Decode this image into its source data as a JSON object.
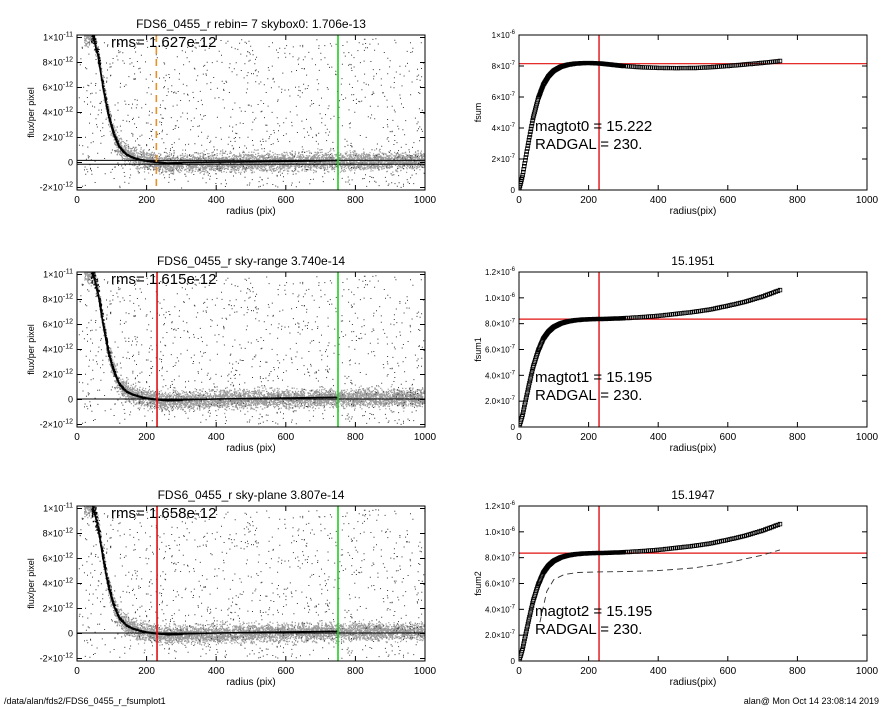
{
  "footer": {
    "path": "/data/alan/fds2/FDS6_0455_r_fsumplot1",
    "stamp": "alan@  Mon Oct 14 23:08:14 2019"
  },
  "chart_data": [
    {
      "id": "flux-rebin",
      "type": "scatter",
      "title": "FDS6_0455_r rebin= 7    skybox0:  1.706e-13",
      "xlabel": "radius (pix)",
      "ylabel": "flux/per pixel",
      "xlim": [
        0,
        1000
      ],
      "ylim": [
        -2.2e-12,
        1.02e-11
      ],
      "xticks": [
        "0",
        "200",
        "400",
        "600",
        "800",
        "1000"
      ],
      "yticks": [
        {
          "v": -2e-12,
          "m": "-2×10",
          "e": "-12"
        },
        {
          "v": 0,
          "m": "0",
          "e": ""
        },
        {
          "v": 2e-12,
          "m": "2×10",
          "e": "-12"
        },
        {
          "v": 4e-12,
          "m": "4×10",
          "e": "-12"
        },
        {
          "v": 6e-12,
          "m": "6×10",
          "e": "-12"
        },
        {
          "v": 8e-12,
          "m": "8×10",
          "e": "-12"
        },
        {
          "v": 1e-11,
          "m": "1×10",
          "e": "-11"
        }
      ],
      "annotation": "rms= 1.627e-12",
      "vlines": [
        {
          "x": 228,
          "color": "#e8902a",
          "style": "dashed"
        },
        {
          "x": 750,
          "color": "#22cc22",
          "style": "solid"
        }
      ],
      "hlines": [
        1.706e-13
      ],
      "profile": [
        [
          45,
          1.02e-11
        ],
        [
          60,
          8.6e-12
        ],
        [
          75,
          6e-12
        ],
        [
          90,
          3.8e-12
        ],
        [
          105,
          2.3e-12
        ],
        [
          120,
          1.3e-12
        ],
        [
          140,
          7e-13
        ],
        [
          160,
          4.2e-13
        ],
        [
          180,
          2.5e-13
        ],
        [
          200,
          1.5e-13
        ],
        [
          228,
          5e-14
        ],
        [
          260,
          -4e-14
        ],
        [
          300,
          0
        ],
        [
          400,
          3e-14
        ],
        [
          500,
          6e-14
        ],
        [
          600,
          1e-13
        ],
        [
          700,
          1.4e-13
        ],
        [
          750,
          1.6e-13
        ]
      ]
    },
    {
      "id": "fsum0",
      "type": "line",
      "title": "",
      "xlabel": "radius(pix)",
      "ylabel": "fsum",
      "xlim": [
        0,
        1000
      ],
      "ylim": [
        0,
        1e-06
      ],
      "xticks": [
        "0",
        "200",
        "400",
        "600",
        "800",
        "1000"
      ],
      "yticks": [
        {
          "v": 0,
          "m": "0",
          "e": ""
        },
        {
          "v": 2e-07,
          "m": "2×10",
          "e": "-7"
        },
        {
          "v": 4e-07,
          "m": "4×10",
          "e": "-7"
        },
        {
          "v": 6e-07,
          "m": "6×10",
          "e": "-7"
        },
        {
          "v": 8e-07,
          "m": "8×10",
          "e": "-7"
        },
        {
          "v": 1e-06,
          "m": "1×10",
          "e": "-6"
        }
      ],
      "annotations": [
        "magtot0 =  15.222",
        "RADGAL =   230."
      ],
      "vline": 230,
      "hline": 8.15e-07,
      "curve": [
        [
          0,
          0
        ],
        [
          10,
          9e-08
        ],
        [
          25,
          2.8e-07
        ],
        [
          40,
          4.6e-07
        ],
        [
          55,
          5.9e-07
        ],
        [
          70,
          6.8e-07
        ],
        [
          85,
          7.35e-07
        ],
        [
          100,
          7.7e-07
        ],
        [
          120,
          7.95e-07
        ],
        [
          140,
          8.08e-07
        ],
        [
          160,
          8.15e-07
        ],
        [
          180,
          8.18e-07
        ],
        [
          200,
          8.19e-07
        ],
        [
          230,
          8.17e-07
        ],
        [
          260,
          8.1e-07
        ],
        [
          300,
          8e-07
        ],
        [
          350,
          7.92e-07
        ],
        [
          400,
          7.88e-07
        ],
        [
          450,
          7.86e-07
        ],
        [
          500,
          7.87e-07
        ],
        [
          550,
          7.92e-07
        ],
        [
          600,
          8e-07
        ],
        [
          650,
          8.1e-07
        ],
        [
          700,
          8.2e-07
        ],
        [
          750,
          8.32e-07
        ]
      ]
    },
    {
      "id": "flux-skyrange",
      "type": "scatter",
      "title": "FDS6_0455_r sky-range  3.740e-14",
      "xlabel": "radius (pix)",
      "ylabel": "flux/per pixel",
      "xlim": [
        0,
        1000
      ],
      "ylim": [
        -2.2e-12,
        1.02e-11
      ],
      "xticks": [
        "0",
        "200",
        "400",
        "600",
        "800",
        "1000"
      ],
      "yticks": [
        {
          "v": -2e-12,
          "m": "-2×10",
          "e": "-12"
        },
        {
          "v": 0,
          "m": "0",
          "e": ""
        },
        {
          "v": 2e-12,
          "m": "2×10",
          "e": "-12"
        },
        {
          "v": 4e-12,
          "m": "4×10",
          "e": "-12"
        },
        {
          "v": 6e-12,
          "m": "6×10",
          "e": "-12"
        },
        {
          "v": 8e-12,
          "m": "8×10",
          "e": "-12"
        },
        {
          "v": 1e-11,
          "m": "1×10",
          "e": "-11"
        }
      ],
      "annotation": "rms= 1.615e-12",
      "vlines": [
        {
          "x": 230,
          "color": "#e01010",
          "style": "solid"
        },
        {
          "x": 750,
          "color": "#22cc22",
          "style": "solid"
        }
      ],
      "hlines": [
        3.74e-14
      ],
      "profile": [
        [
          45,
          1.02e-11
        ],
        [
          60,
          8.6e-12
        ],
        [
          75,
          6e-12
        ],
        [
          90,
          3.8e-12
        ],
        [
          105,
          2.3e-12
        ],
        [
          120,
          1.3e-12
        ],
        [
          140,
          7e-13
        ],
        [
          160,
          4.2e-13
        ],
        [
          180,
          2.5e-13
        ],
        [
          200,
          1.2e-13
        ],
        [
          230,
          2e-14
        ],
        [
          260,
          -5e-14
        ],
        [
          300,
          -3e-14
        ],
        [
          400,
          4e-14
        ],
        [
          500,
          8e-14
        ],
        [
          600,
          1.2e-13
        ],
        [
          700,
          1.6e-13
        ],
        [
          750,
          1.8e-13
        ]
      ]
    },
    {
      "id": "fsum1",
      "type": "line",
      "title": "15.1951",
      "xlabel": "radius(pix)",
      "ylabel": "fsum1",
      "xlim": [
        0,
        1000
      ],
      "ylim": [
        0,
        1.2e-06
      ],
      "xticks": [
        "0",
        "200",
        "400",
        "600",
        "800",
        "1000"
      ],
      "yticks": [
        {
          "v": 0,
          "m": "0",
          "e": ""
        },
        {
          "v": 2e-07,
          "m": "2.0×10",
          "e": "-7"
        },
        {
          "v": 4e-07,
          "m": "4.0×10",
          "e": "-7"
        },
        {
          "v": 6e-07,
          "m": "6.0×10",
          "e": "-7"
        },
        {
          "v": 8e-07,
          "m": "8.0×10",
          "e": "-7"
        },
        {
          "v": 1e-06,
          "m": "1.0×10",
          "e": "-6"
        },
        {
          "v": 1.2e-06,
          "m": "1.2×10",
          "e": "-6"
        }
      ],
      "annotations": [
        "magtot1 =  15.195",
        "RADGAL =    230."
      ],
      "vline": 230,
      "hline": 8.35e-07,
      "curve": [
        [
          0,
          0
        ],
        [
          10,
          9e-08
        ],
        [
          25,
          2.8e-07
        ],
        [
          40,
          4.6e-07
        ],
        [
          55,
          5.9e-07
        ],
        [
          70,
          6.85e-07
        ],
        [
          85,
          7.4e-07
        ],
        [
          100,
          7.75e-07
        ],
        [
          120,
          8.02e-07
        ],
        [
          140,
          8.17e-07
        ],
        [
          160,
          8.26e-07
        ],
        [
          180,
          8.31e-07
        ],
        [
          200,
          8.34e-07
        ],
        [
          230,
          8.36e-07
        ],
        [
          260,
          8.38e-07
        ],
        [
          300,
          8.42e-07
        ],
        [
          350,
          8.5e-07
        ],
        [
          400,
          8.6e-07
        ],
        [
          450,
          8.75e-07
        ],
        [
          500,
          8.9e-07
        ],
        [
          550,
          9.1e-07
        ],
        [
          600,
          9.38e-07
        ],
        [
          650,
          9.7e-07
        ],
        [
          700,
          1.01e-06
        ],
        [
          750,
          1.06e-06
        ]
      ]
    },
    {
      "id": "flux-skyplane",
      "type": "scatter",
      "title": "FDS6_0455_r sky-plane  3.807e-14",
      "xlabel": "radius (pix)",
      "ylabel": "flux/per pixel",
      "xlim": [
        0,
        1000
      ],
      "ylim": [
        -2.2e-12,
        1.02e-11
      ],
      "xticks": [
        "0",
        "200",
        "400",
        "600",
        "800",
        "1000"
      ],
      "yticks": [
        {
          "v": -2e-12,
          "m": "-2×10",
          "e": "-12"
        },
        {
          "v": 0,
          "m": "0",
          "e": ""
        },
        {
          "v": 2e-12,
          "m": "2×10",
          "e": "-12"
        },
        {
          "v": 4e-12,
          "m": "4×10",
          "e": "-12"
        },
        {
          "v": 6e-12,
          "m": "6×10",
          "e": "-12"
        },
        {
          "v": 8e-12,
          "m": "8×10",
          "e": "-12"
        },
        {
          "v": 1e-11,
          "m": "1×10",
          "e": "-11"
        }
      ],
      "annotation": "rms= 1.658e-12",
      "vlines": [
        {
          "x": 230,
          "color": "#e01010",
          "style": "solid"
        },
        {
          "x": 750,
          "color": "#22cc22",
          "style": "solid"
        }
      ],
      "hlines": [
        3.807e-14
      ],
      "profile": [
        [
          45,
          1.02e-11
        ],
        [
          60,
          8.6e-12
        ],
        [
          75,
          6e-12
        ],
        [
          90,
          3.8e-12
        ],
        [
          105,
          2.3e-12
        ],
        [
          120,
          1.3e-12
        ],
        [
          140,
          7e-13
        ],
        [
          160,
          4.2e-13
        ],
        [
          180,
          2.5e-13
        ],
        [
          200,
          1.2e-13
        ],
        [
          230,
          2e-14
        ],
        [
          260,
          -5e-14
        ],
        [
          300,
          -3e-14
        ],
        [
          400,
          4e-14
        ],
        [
          500,
          8e-14
        ],
        [
          600,
          1.2e-13
        ],
        [
          700,
          1.6e-13
        ],
        [
          750,
          1.8e-13
        ]
      ]
    },
    {
      "id": "fsum2",
      "type": "line",
      "title": "15.1947",
      "xlabel": "radius(pix)",
      "ylabel": "fsum2",
      "xlim": [
        0,
        1000
      ],
      "ylim": [
        0,
        1.2e-06
      ],
      "xticks": [
        "0",
        "200",
        "400",
        "600",
        "800",
        "1000"
      ],
      "yticks": [
        {
          "v": 0,
          "m": "0",
          "e": ""
        },
        {
          "v": 2e-07,
          "m": "2.0×10",
          "e": "-7"
        },
        {
          "v": 4e-07,
          "m": "4.0×10",
          "e": "-7"
        },
        {
          "v": 6e-07,
          "m": "6.0×10",
          "e": "-7"
        },
        {
          "v": 8e-07,
          "m": "8.0×10",
          "e": "-7"
        },
        {
          "v": 1e-06,
          "m": "1.0×10",
          "e": "-6"
        },
        {
          "v": 1.2e-06,
          "m": "1.2×10",
          "e": "-6"
        }
      ],
      "annotations": [
        "magtot2 =  15.195",
        "RADGAL =    230."
      ],
      "vline": 230,
      "hline": 8.35e-07,
      "curve": [
        [
          0,
          0
        ],
        [
          10,
          9e-08
        ],
        [
          25,
          2.8e-07
        ],
        [
          40,
          4.6e-07
        ],
        [
          55,
          5.9e-07
        ],
        [
          70,
          6.85e-07
        ],
        [
          85,
          7.4e-07
        ],
        [
          100,
          7.75e-07
        ],
        [
          120,
          8.02e-07
        ],
        [
          140,
          8.17e-07
        ],
        [
          160,
          8.26e-07
        ],
        [
          180,
          8.31e-07
        ],
        [
          200,
          8.34e-07
        ],
        [
          230,
          8.36e-07
        ],
        [
          260,
          8.38e-07
        ],
        [
          300,
          8.42e-07
        ],
        [
          350,
          8.5e-07
        ],
        [
          400,
          8.6e-07
        ],
        [
          450,
          8.75e-07
        ],
        [
          500,
          8.9e-07
        ],
        [
          550,
          9.1e-07
        ],
        [
          600,
          9.38e-07
        ],
        [
          650,
          9.7e-07
        ],
        [
          700,
          1.01e-06
        ],
        [
          750,
          1.06e-06
        ]
      ],
      "curve2": [
        [
          60,
          3e-07
        ],
        [
          80,
          5.4e-07
        ],
        [
          100,
          6.3e-07
        ],
        [
          130,
          6.7e-07
        ],
        [
          170,
          6.85e-07
        ],
        [
          230,
          6.9e-07
        ],
        [
          300,
          6.92e-07
        ],
        [
          400,
          7e-07
        ],
        [
          500,
          7.2e-07
        ],
        [
          600,
          7.6e-07
        ],
        [
          700,
          8.2e-07
        ],
        [
          750,
          8.6e-07
        ]
      ]
    }
  ]
}
